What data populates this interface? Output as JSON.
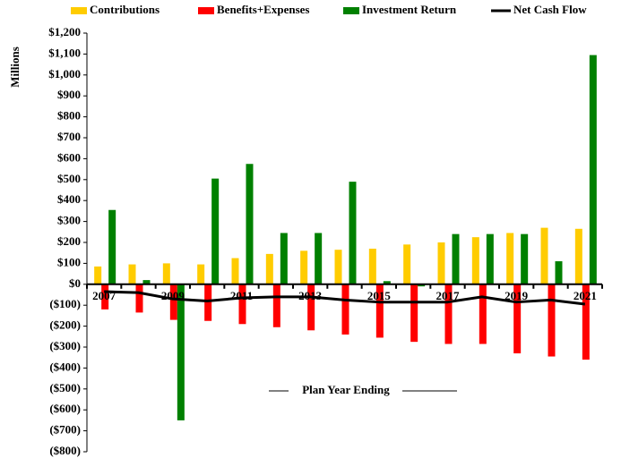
{
  "chart_data": {
    "type": "bar",
    "y_axis_label": "Millions",
    "x_axis_label": "Plan Year Ending",
    "legend": "top",
    "grid": false,
    "categories": [
      "2007",
      null,
      "2009",
      null,
      "2011",
      null,
      "2013",
      null,
      "2015",
      null,
      "2017",
      null,
      "2019",
      null,
      "2021"
    ],
    "series": [
      {
        "name": "Contributions",
        "color": "#ffcc00",
        "type": "bar",
        "values": [
          85,
          95,
          100,
          95,
          125,
          145,
          160,
          165,
          170,
          190,
          200,
          225,
          245,
          270,
          265
        ]
      },
      {
        "name": "Benefits+Expenses",
        "color": "#ff0000",
        "type": "bar",
        "values": [
          -120,
          -135,
          -170,
          -175,
          -190,
          -205,
          -220,
          -240,
          -255,
          -275,
          -285,
          -285,
          -330,
          -345,
          -360
        ]
      },
      {
        "name": "Investment Return",
        "color": "#008000",
        "type": "bar",
        "values": [
          355,
          20,
          -650,
          505,
          575,
          245,
          245,
          490,
          15,
          -10,
          240,
          240,
          240,
          110,
          1095
        ]
      },
      {
        "name": "Net Cash Flow",
        "color": "#000000",
        "type": "line",
        "values": [
          -35,
          -40,
          -70,
          -80,
          -65,
          -60,
          -60,
          -75,
          -85,
          -85,
          -85,
          -60,
          -85,
          -75,
          -95
        ]
      }
    ],
    "ylim": [
      -800,
      1200
    ],
    "yticks": [
      {
        "value": -800,
        "label": "($800)"
      },
      {
        "value": -700,
        "label": "($700)"
      },
      {
        "value": -600,
        "label": "($600)"
      },
      {
        "value": -500,
        "label": "($500)"
      },
      {
        "value": -400,
        "label": "($400)"
      },
      {
        "value": -300,
        "label": "($300)"
      },
      {
        "value": -200,
        "label": "($200)"
      },
      {
        "value": -100,
        "label": "($100)"
      },
      {
        "value": 0,
        "label": "$0"
      },
      {
        "value": 100,
        "label": "$100"
      },
      {
        "value": 200,
        "label": "$200"
      },
      {
        "value": 300,
        "label": "$300"
      },
      {
        "value": 400,
        "label": "$400"
      },
      {
        "value": 500,
        "label": "$500"
      },
      {
        "value": 600,
        "label": "$600"
      },
      {
        "value": 700,
        "label": "$700"
      },
      {
        "value": 800,
        "label": "$800"
      },
      {
        "value": 900,
        "label": "$900"
      },
      {
        "value": 1000,
        "label": "$1,000"
      },
      {
        "value": 1100,
        "label": "$1,100"
      },
      {
        "value": 1200,
        "label": "$1,200"
      }
    ]
  }
}
